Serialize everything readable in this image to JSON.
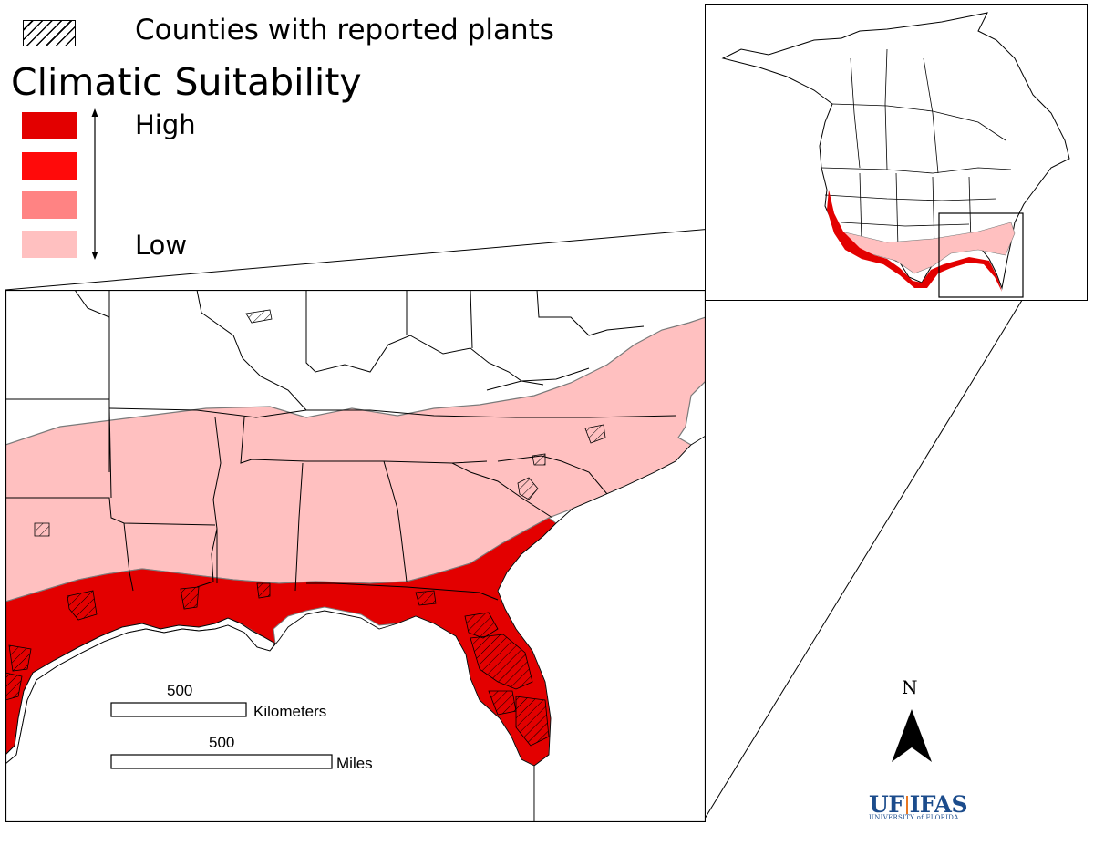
{
  "legend": {
    "hatch_label": "Counties with reported plants",
    "title": "Climatic Suitability",
    "high_label": "High",
    "low_label": "Low",
    "levels": [
      {
        "name": "high",
        "color": "#e30000"
      },
      {
        "name": "medium-high",
        "color": "#ff0a0a"
      },
      {
        "name": "medium-low",
        "color": "#ff8383"
      },
      {
        "name": "low",
        "color": "#ffc0c0"
      }
    ]
  },
  "scale_bars": {
    "km_value": "500",
    "km_unit": "Kilometers",
    "mi_value": "500",
    "mi_unit": "Miles"
  },
  "north_arrow": {
    "label": "N"
  },
  "logo": {
    "main_left": "UF",
    "main_right": "IFAS",
    "sub": "UNIVERSITY of FLORIDA"
  },
  "colors": {
    "high_suitability": "#e30000",
    "low_suitability": "#ffc0c0",
    "boundary": "#000000",
    "region_outline": "#7a7a7a",
    "logo_blue": "#1c4c8c",
    "logo_orange": "#e87722"
  }
}
